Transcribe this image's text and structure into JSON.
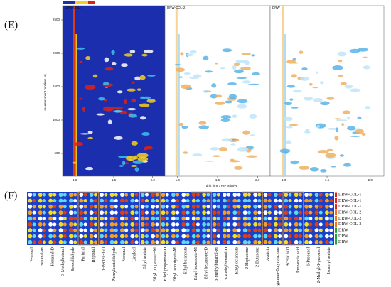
{
  "panel_e": {
    "label": "(E)",
    "y_axis_label": "measurement run time [s]",
    "x_axis_label": "drift time / RIP relative",
    "y_ticks": [
      "2500",
      "2000",
      "1500",
      "1000",
      "500"
    ],
    "x_ticks": [
      "1.0",
      "1.5",
      "2.0"
    ],
    "subplots": [
      "DRW-COL-1",
      "DRW-COL-2",
      "DRW"
    ]
  },
  "panel_f": {
    "label": "(F)",
    "rows": [
      "DRW-COL-1",
      "DRW-COL-1",
      "DRW-COL-1",
      "DRW-COL-2",
      "DRW-COL-2",
      "DRW-COL-2",
      "DRW",
      "DRW",
      "DRW"
    ],
    "compounds": [
      "Pentanal",
      "Hexanal-M",
      "Hexanal-D",
      "3-Methylbutanal",
      "Benzaldehyde",
      "Furfural",
      "Heptanal",
      "1-Penten-3-ol",
      "Phenylacetaldehyde",
      "Nonanal",
      "Linalool",
      "Ethyl acetate",
      "Ethyl propanoate-M",
      "Ethyl propanoate-D",
      "Ethyl isobutyrate-M",
      "Ethyl butanoate",
      "Ethyl hexanoate-M",
      "Ethyl hexanoate-D",
      "3-Methylbutanol-M",
      "3-Methylbutanol-D",
      "Ethyl octanoate",
      "2-Heptanone",
      "2-Butanone",
      "Acetoin",
      "gamma-Butyrolactone",
      "Acetic acid",
      "Propanoic acid",
      "1-Propanol",
      "2-Methyl-1-propanol",
      "Isoamyl acetate"
    ]
  }
}
